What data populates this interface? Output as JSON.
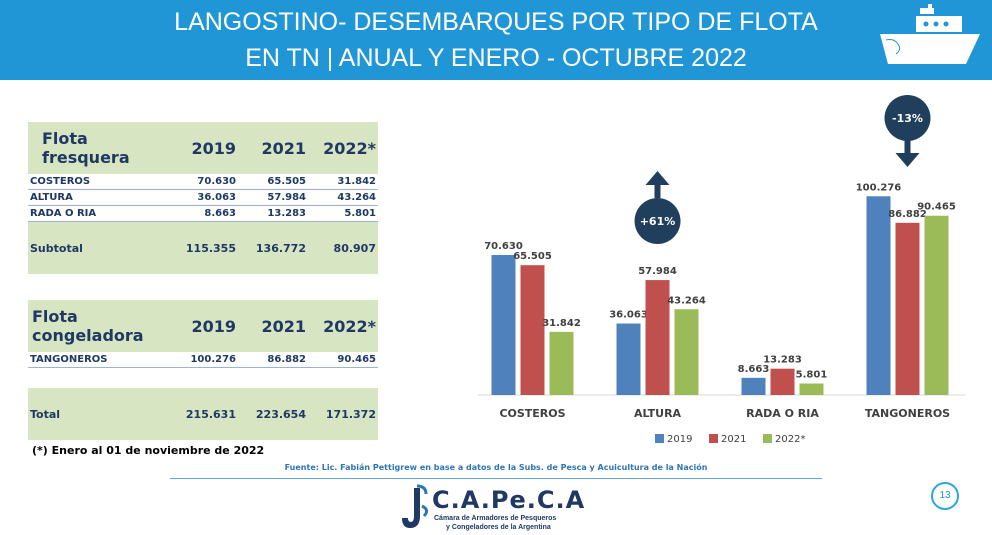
{
  "header": {
    "title_line1": "LANGOSTINO- DESEMBARQUES POR TIPO DE FLOTA",
    "title_line2": "EN TN | ANUAL Y ENERO - OCTUBRE 2022"
  },
  "table_fresquera": {
    "title": "Flota fresquera",
    "years": [
      "2019",
      "2021",
      "2022*"
    ],
    "rows": [
      {
        "label": "COSTEROS",
        "values": [
          "70.630",
          "65.505",
          "31.842"
        ]
      },
      {
        "label": "ALTURA",
        "values": [
          "36.063",
          "57.984",
          "43.264"
        ]
      },
      {
        "label": "RADA O RIA",
        "values": [
          "8.663",
          "13.283",
          "5.801"
        ]
      }
    ],
    "subtotal": {
      "label": "Subtotal",
      "values": [
        "115.355",
        "136.772",
        "80.907"
      ]
    }
  },
  "table_congeladora": {
    "title": "Flota congeladora",
    "years": [
      "2019",
      "2021",
      "2022*"
    ],
    "rows": [
      {
        "label": "TANGONEROS",
        "values": [
          "100.276",
          "86.882",
          "90.465"
        ]
      }
    ],
    "total": {
      "label": "Total",
      "values": [
        "215.631",
        "223.654",
        "171.372"
      ]
    }
  },
  "footnote": "(*) Enero al 01 de noviembre de 2022",
  "source": "Fuente: Lic. Fabián Pettigrew en base a datos de la Subs. de Pesca y Acuicultura de la Nación",
  "logo": {
    "name": "C.A.Pe.C.A",
    "line1": "Cámara de Armadores de Pesqueros",
    "line2": "y Congeladores de la Argentina"
  },
  "page_number": "13",
  "chart_data": {
    "type": "bar",
    "categories": [
      "COSTEROS",
      "ALTURA",
      "RADA O RIA",
      "TANGONEROS"
    ],
    "series": [
      {
        "name": "2019",
        "color": "#4f81bd",
        "values": [
          70630,
          36063,
          8663,
          100276
        ],
        "labels": [
          "70.630",
          "36.063",
          "8.663",
          "100.276"
        ]
      },
      {
        "name": "2021",
        "color": "#c0504d",
        "values": [
          65505,
          57984,
          13283,
          86882
        ],
        "labels": [
          "65.505",
          "57.984",
          "13.283",
          "86.882"
        ]
      },
      {
        "name": "2022*",
        "color": "#9bbb59",
        "values": [
          31842,
          43264,
          5801,
          90465
        ],
        "labels": [
          "31.842",
          "43.264",
          "5.801",
          "90.465"
        ]
      }
    ],
    "annotations": [
      {
        "category": "ALTURA",
        "text": "+61%",
        "direction": "up"
      },
      {
        "category": "TANGONEROS",
        "text": "-13%",
        "direction": "down"
      }
    ],
    "legend_position": "bottom",
    "grid": false,
    "ylim": [
      0,
      110000
    ],
    "label_color": "#404040",
    "badge_color": "#1f3f5c"
  }
}
